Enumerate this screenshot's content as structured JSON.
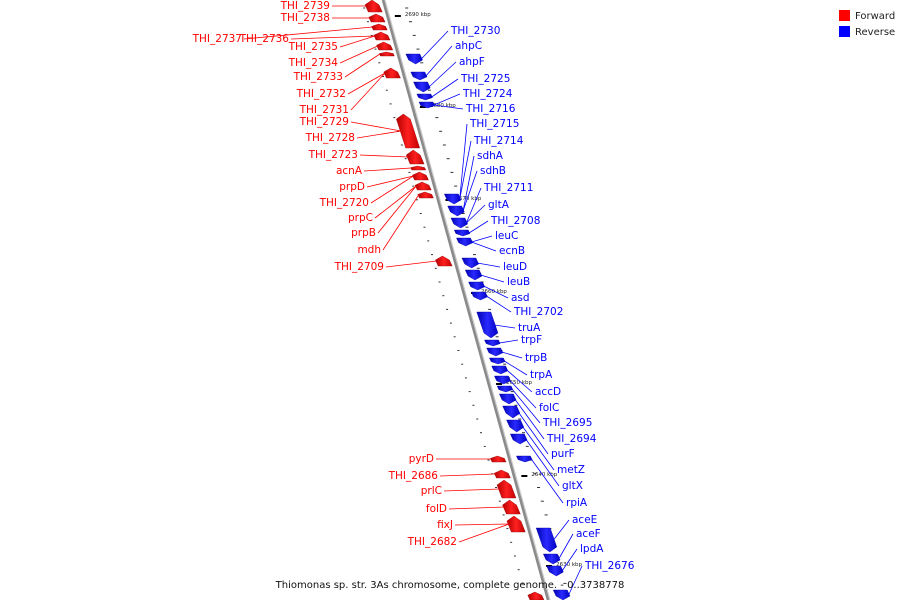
{
  "caption": "Thiomonas sp. str. 3As chromosome, complete genome. - 0..3738778",
  "legend": [
    {
      "label": "Forward",
      "color": "#ff0000"
    },
    {
      "label": "Reverse",
      "color": "#0000ff"
    }
  ],
  "colors": {
    "forward": "#ff0000",
    "reverse": "#0000ff",
    "backbone": "#999999"
  },
  "scale_labels": [
    "2690 kbp",
    "2680 kbp",
    "2670 kbp",
    "2660 kbp",
    "2650 kbp",
    "2640 kbp",
    "2630 kbp"
  ],
  "forward_genes": [
    "THI_2739",
    "THI_2738",
    "THI_2737",
    "THI_2736",
    "THI_2735",
    "THI_2734",
    "THI_2733",
    "THI_2732",
    "THI_2731",
    "THI_2729",
    "THI_2728",
    "THI_2723",
    "acnA",
    "prpD",
    "THI_2720",
    "prpC",
    "prpB",
    "mdh",
    "THI_2709",
    "pyrD",
    "THI_2686",
    "prlC",
    "folD",
    "fixJ",
    "THI_2682"
  ],
  "reverse_genes": [
    "THI_2730",
    "ahpC",
    "ahpF",
    "THI_2725",
    "THI_2724",
    "THI_2716",
    "THI_2715",
    "THI_2714",
    "sdhA",
    "sdhB",
    "THI_2711",
    "gltA",
    "THI_2708",
    "leuC",
    "ecnB",
    "leuD",
    "leuB",
    "asd",
    "THI_2702",
    "truA",
    "trpF",
    "trpB",
    "trpA",
    "accD",
    "folC",
    "THI_2695",
    "THI_2694",
    "purF",
    "metZ",
    "gltX",
    "rpiA",
    "aceE",
    "aceF",
    "lpdA",
    "THI_2676"
  ]
}
